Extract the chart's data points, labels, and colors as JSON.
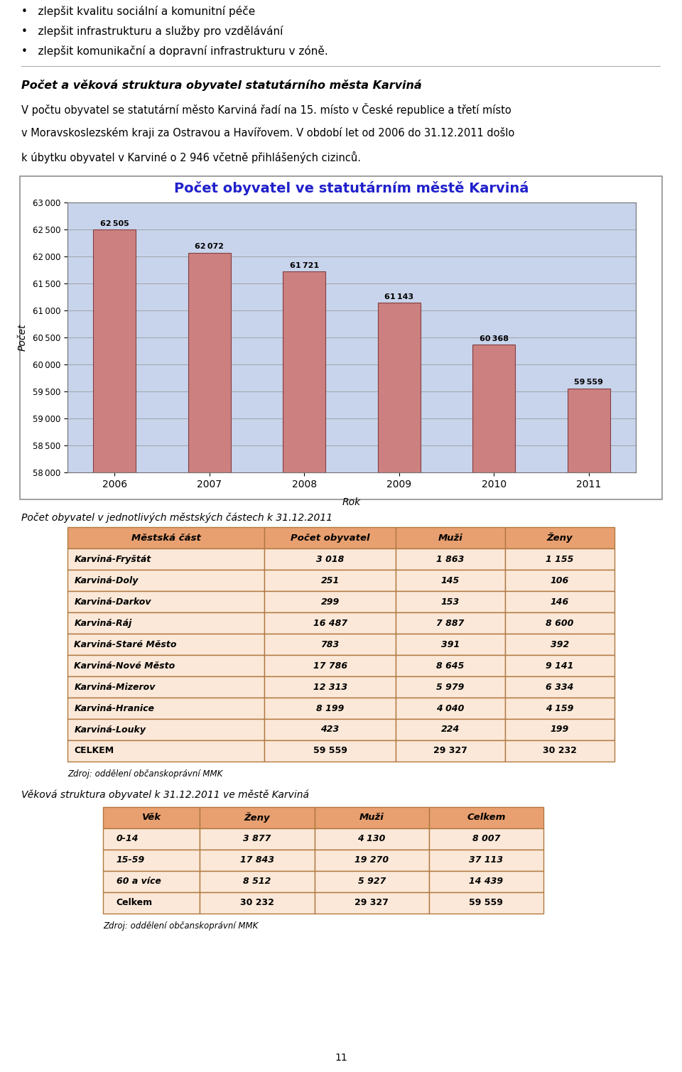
{
  "page_title_lines": [
    "•   zlepšit kvalitu sociální a komunitní péče",
    "•   zlepšit infrastrukturu a služby pro vzdělávání",
    "•   zlepšit komunikační a dopravní infrastrukturu v zóně."
  ],
  "section_heading": "Počet a věková struktura obyvatel statutárního města Karviná",
  "paragraph_line1": "V počtu obyvatel se statutární město Karviná řadí na 15. místo v České republice a třetí místo",
  "paragraph_line2": "v Moravskoslezském kraji za Ostravou a Havířovem. V období let od 2006 do 31.12.2011 došlo",
  "paragraph_line3": "k úbytku obyvatel v Karviné o 2 946 včetně přihlášených cizinců.",
  "chart_title": "Počet obyvatel ve statutárním městě Karviná",
  "years": [
    2006,
    2007,
    2008,
    2009,
    2010,
    2011
  ],
  "values": [
    62505,
    62072,
    61721,
    61143,
    60368,
    59559
  ],
  "bar_color": "#CD8080",
  "bar_edge_color": "#804040",
  "chart_bg_color": "#C8D4EC",
  "ylabel": "Počet",
  "xlabel": "Rok",
  "ylim_min": 58000,
  "ylim_max": 63000,
  "ytick_step": 500,
  "table1_caption": "Počet obyvatel v jednotlivých městských částech k 31.12.2011",
  "table1_headers": [
    "Městská část",
    "Počet obyvatel",
    "Muži",
    "Ženy"
  ],
  "table1_data": [
    [
      "Karviná-Fryštát",
      "3 018",
      "1 863",
      "1 155"
    ],
    [
      "Karviná-Doly",
      "251",
      "145",
      "106"
    ],
    [
      "Karviná-Darkov",
      "299",
      "153",
      "146"
    ],
    [
      "Karviná-Ráj",
      "16 487",
      "7 887",
      "8 600"
    ],
    [
      "Karviná-Staré Město",
      "783",
      "391",
      "392"
    ],
    [
      "Karviná-Nové Město",
      "17 786",
      "8 645",
      "9 141"
    ],
    [
      "Karviná-Mizerov",
      "12 313",
      "5 979",
      "6 334"
    ],
    [
      "Karviná-Hranice",
      "8 199",
      "4 040",
      "4 159"
    ],
    [
      "Karviná-Louky",
      "423",
      "224",
      "199"
    ],
    [
      "CELKEM",
      "59 559",
      "29 327",
      "30 232"
    ]
  ],
  "table1_source": "Zdroj: oddělení občanskoprávní MMK",
  "table2_caption": "Věková struktura obyvatel k 31.12.2011 ve městě Karviná",
  "table2_headers": [
    "Věk",
    "Ženy",
    "Muži",
    "Celkem"
  ],
  "table2_data": [
    [
      "0-14",
      "3 877",
      "4 130",
      "8 007"
    ],
    [
      "15-59",
      "17 843",
      "19 270",
      "37 113"
    ],
    [
      "60 a více",
      "8 512",
      "5 927",
      "14 439"
    ],
    [
      "Celkem",
      "30 232",
      "29 327",
      "59 559"
    ]
  ],
  "table2_source": "Zdroj: oddělení občanskoprávní MMK",
  "page_number": "11",
  "header_color": "#E8A070",
  "table_bg_color": "#FBE8D8",
  "table_border_color": "#B07840"
}
